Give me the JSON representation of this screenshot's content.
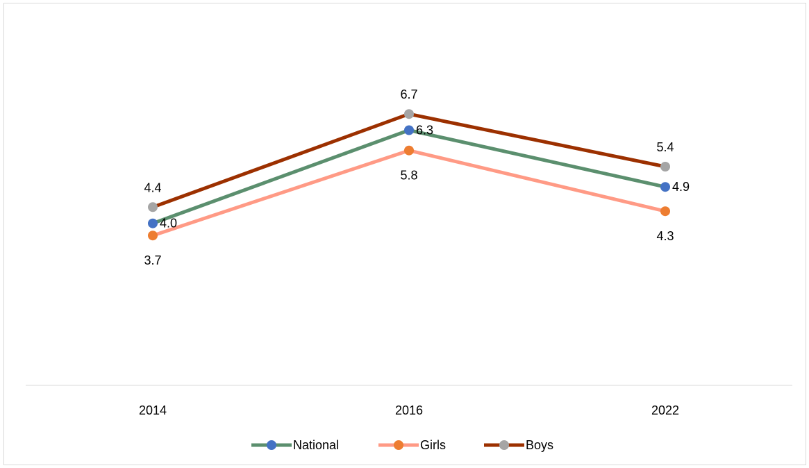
{
  "chart_data": {
    "type": "line",
    "categories": [
      "2014",
      "2016",
      "2022"
    ],
    "ylim": [
      0,
      9
    ],
    "grid": false,
    "legend_position": "bottom",
    "series": [
      {
        "name": "National",
        "values": [
          4.0,
          6.3,
          4.9
        ],
        "labels": [
          "4.0",
          "6.3",
          "4.9"
        ],
        "line_color": "#5b8f6e",
        "marker_color": "#4472c4",
        "label_position": "right"
      },
      {
        "name": "Girls",
        "values": [
          3.7,
          5.8,
          4.3
        ],
        "labels": [
          "3.7",
          "5.8",
          "4.3"
        ],
        "line_color": "#ff9a85",
        "marker_color": "#ed7d31",
        "label_position": "below"
      },
      {
        "name": "Boys",
        "values": [
          4.4,
          6.7,
          5.4
        ],
        "labels": [
          "4.4",
          "6.7",
          "5.4"
        ],
        "line_color": "#9c3000",
        "marker_color": "#a5a5a5",
        "label_position": "above"
      }
    ]
  }
}
